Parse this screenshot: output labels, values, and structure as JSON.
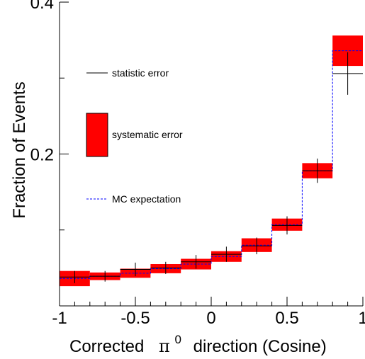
{
  "chart_data": {
    "type": "bar",
    "xlabel_prefix": "Corrected",
    "xlabel_symbol": "π",
    "xlabel_superscript": "0",
    "xlabel_suffix": "direction (Cosine)",
    "ylabel": "Fraction of Events",
    "xlim": [
      -1,
      1
    ],
    "ylim": [
      0,
      0.4
    ],
    "x_ticks": [
      -1,
      -0.5,
      0,
      0.5,
      1
    ],
    "x_tick_labels": [
      "-1",
      "-0.5",
      "0",
      "0.5",
      "1"
    ],
    "y_ticks": [
      0.2,
      0.4
    ],
    "y_tick_labels": [
      "0.2",
      "0.4"
    ],
    "bin_edges": [
      -1.0,
      -0.8,
      -0.6,
      -0.4,
      -0.2,
      0.0,
      0.2,
      0.4,
      0.6,
      0.8,
      1.0
    ],
    "bin_centers": [
      -0.9,
      -0.7,
      -0.5,
      -0.3,
      -0.1,
      0.1,
      0.3,
      0.5,
      0.7,
      0.9
    ],
    "data_values": [
      0.038,
      0.039,
      0.048,
      0.05,
      0.058,
      0.068,
      0.079,
      0.106,
      0.178,
      0.306
    ],
    "stat_errors": [
      0.008,
      0.007,
      0.009,
      0.008,
      0.009,
      0.01,
      0.011,
      0.012,
      0.016,
      0.028
    ],
    "mc_expectation": [
      0.036,
      0.039,
      0.043,
      0.049,
      0.055,
      0.065,
      0.08,
      0.107,
      0.178,
      0.336
    ],
    "syst_errors": [
      0.01,
      0.005,
      0.006,
      0.006,
      0.007,
      0.007,
      0.009,
      0.008,
      0.01,
      0.02
    ],
    "legend": [
      {
        "label": "statistic error",
        "style": "line",
        "color": "#000000"
      },
      {
        "label": "systematic error",
        "style": "box",
        "color": "#ff0000"
      },
      {
        "label": "MC expectation",
        "style": "dashed",
        "color": "#0000ff"
      }
    ],
    "colors": {
      "syst_fill": "#ff0000",
      "mc_line": "#0000ff",
      "data": "#000000"
    }
  }
}
